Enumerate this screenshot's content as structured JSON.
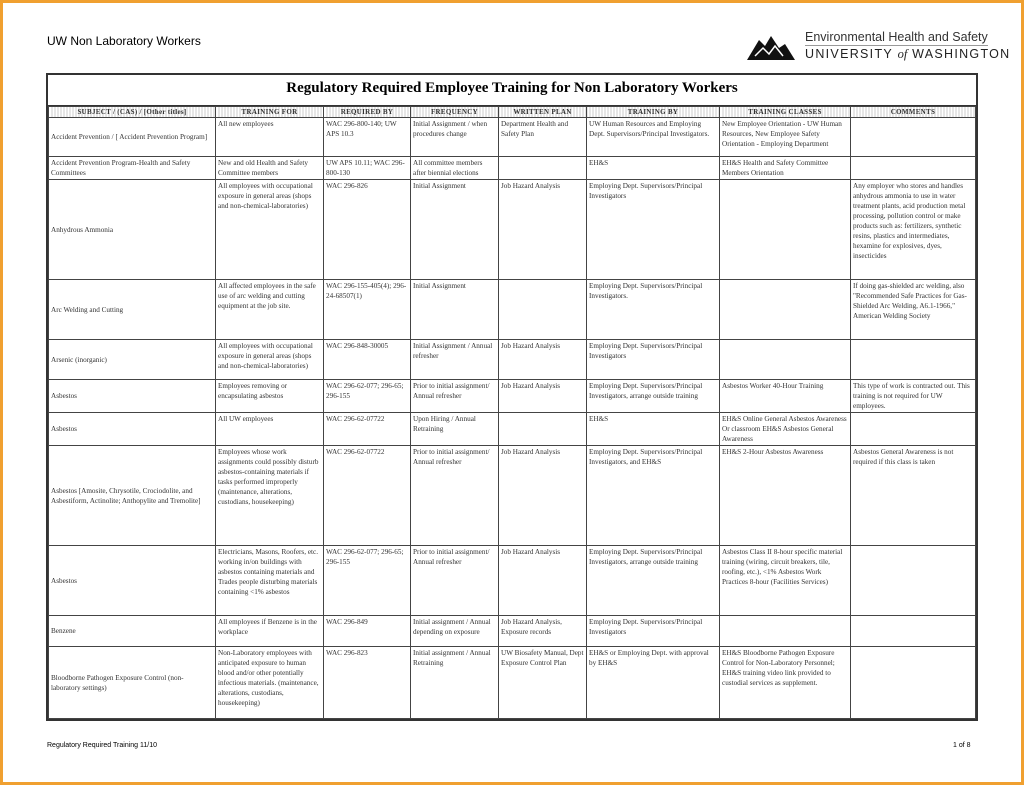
{
  "header": {
    "doc_title": "UW Non Laboratory Workers",
    "logo_line1": "Environmental Health and Safety",
    "logo_line2a": "UNIVERSITY",
    "logo_line2b": "of",
    "logo_line2c": "WASHINGTON"
  },
  "colors": {
    "frame": "#f0a030"
  },
  "table": {
    "title": "Regulatory Required Employee Training for Non Laboratory Workers",
    "columns": [
      "SUBJECT / (CAS) / [Other titles]",
      "TRAINING FOR",
      "REQUIRED BY",
      "FREQUENCY",
      "WRITTEN PLAN",
      "TRAINING BY",
      "TRAINING CLASSES",
      "COMMENTS"
    ],
    "rows": [
      [
        "Accident Prevention / [ Accident Prevention Program]",
        "All new employees",
        "WAC 296-800-140; UW APS 10.3",
        "Initial Assignment / when procedures change",
        "Department Health and Safety Plan",
        "UW Human Resources and Employing Dept. Supervisors/Principal Investigators.",
        "New Employee Orientation - UW Human Resources, New Employee Safety Orientation - Employing Department",
        ""
      ],
      [
        "Accident Prevention Program-Health and Safety Committees",
        "New and old Health and Safety Committee members",
        "UW APS 10.11; WAC 296-800-130",
        "All committee members after biennial elections",
        "",
        "EH&S",
        "EH&S Health and Safety Committee Members Orientation",
        ""
      ],
      [
        "Anhydrous Ammonia",
        "All employees with occupational exposure in general areas (shops and non-chemical-laboratories)",
        "WAC 296-826",
        "Initial Assignment",
        "Job Hazard Analysis",
        "Employing Dept. Supervisors/Principal Investigators",
        "",
        "Any employer who stores and handles anhydrous ammonia to use in water treatment plants, acid production metal processing, pollution control or make products such as: fertilizers, synthetic resins, plastics and intermediates, hexamine for explosives, dyes, insecticides"
      ],
      [
        "Arc Welding and Cutting",
        "All affected employees in the safe use of arc welding and cutting equipment at the job site.",
        "WAC 296-155-405(4); 296-24-68507(1)",
        "Initial Assignment",
        "",
        "Employing Dept. Supervisors/Principal Investigators.",
        "",
        "If doing gas-shielded arc welding, also \"Recommended Safe Practices for Gas-Shielded Arc Welding, A6.1-1966,\" American Welding Society"
      ],
      [
        "Arsenic (inorganic)",
        "All employees with occupational exposure in general areas (shops and non-chemical-laboratories)",
        "WAC 296-848-30005",
        "Initial Assignment / Annual refresher",
        "Job Hazard Analysis",
        "Employing Dept. Supervisors/Principal Investigators",
        "",
        ""
      ],
      [
        "Asbestos",
        "Employees removing or encapsulating asbestos",
        "WAC 296-62-077; 296-65; 296-155",
        "Prior to initial assignment/ Annual refresher",
        "Job Hazard Analysis",
        "Employing Dept. Supervisors/Principal Investigators, arrange outside training",
        "Asbestos Worker 40-Hour Training",
        "This type of work is contracted out. This training is not required for UW employees."
      ],
      [
        "Asbestos",
        "All UW employees",
        "WAC 296-62-07722",
        "Upon Hiring / Annual Retraining",
        "",
        "EH&S",
        "EH&S Online General Asbestos Awareness Or classroom EH&S Asbestos General Awareness",
        ""
      ],
      [
        "Asbestos [Amosite, Chrysotile, Crociodolite, and Asbestiform, Actinolite; Anthopylite and Tremolite]",
        "Employees whose work assignments could possibly disturb asbestos-containing materials if tasks performed improperly (maintenance, alterations, custodians, housekeeping)",
        "WAC 296-62-07722",
        "Prior to initial assignment/ Annual refresher",
        "Job Hazard Analysis",
        "Employing Dept. Supervisors/Principal Investigators, and EH&S",
        "EH&S 2-Hour Asbestos Awareness",
        "Asbestos General Awareness is not required if this class is taken"
      ],
      [
        "Asbestos",
        "Electricians, Masons, Roofers, etc. working in/on buildings with asbestos containing materials and Trades people disturbing materials containing <1% asbestos",
        "WAC 296-62-077; 296-65; 296-155",
        "Prior to initial assignment/ Annual refresher",
        "Job Hazard Analysis",
        "Employing Dept. Supervisors/Principal Investigators, arrange outside training",
        "Asbestos Class II 8-hour specific material training (wiring, circuit breakers, tile, roofing, etc.), <1% Asbestos Work Practices 8-hour (Facilities Services)",
        ""
      ],
      [
        "Benzene",
        "All employees if Benzene is in the workplace",
        "WAC 296-849",
        "Initial assignment / Annual depending on exposure",
        "Job Hazard Analysis, Exposure records",
        "Employing Dept. Supervisors/Principal Investigators",
        "",
        ""
      ],
      [
        "Bloodborne Pathogen Exposure Control (non-laboratory settings)",
        "Non-Laboratory employees with anticipated exposure to human blood and/or other potentially infectious materials. (maintenance, alterations, custodians, housekeeping)",
        "WAC 296-823",
        "Initial assignment / Annual Retraining",
        "UW Biosafety Manual, Dept Exposure Control Plan",
        "EH&S or Employing Dept. with approval by EH&S",
        "EH&S Bloodborne Pathogen Exposure Control for Non-Laboratory Personnel; EH&S training video link provided to custodial services as supplement.",
        ""
      ]
    ]
  },
  "footer": {
    "left": "Regulatory Required Training  11/10",
    "right": "1 of  8"
  }
}
